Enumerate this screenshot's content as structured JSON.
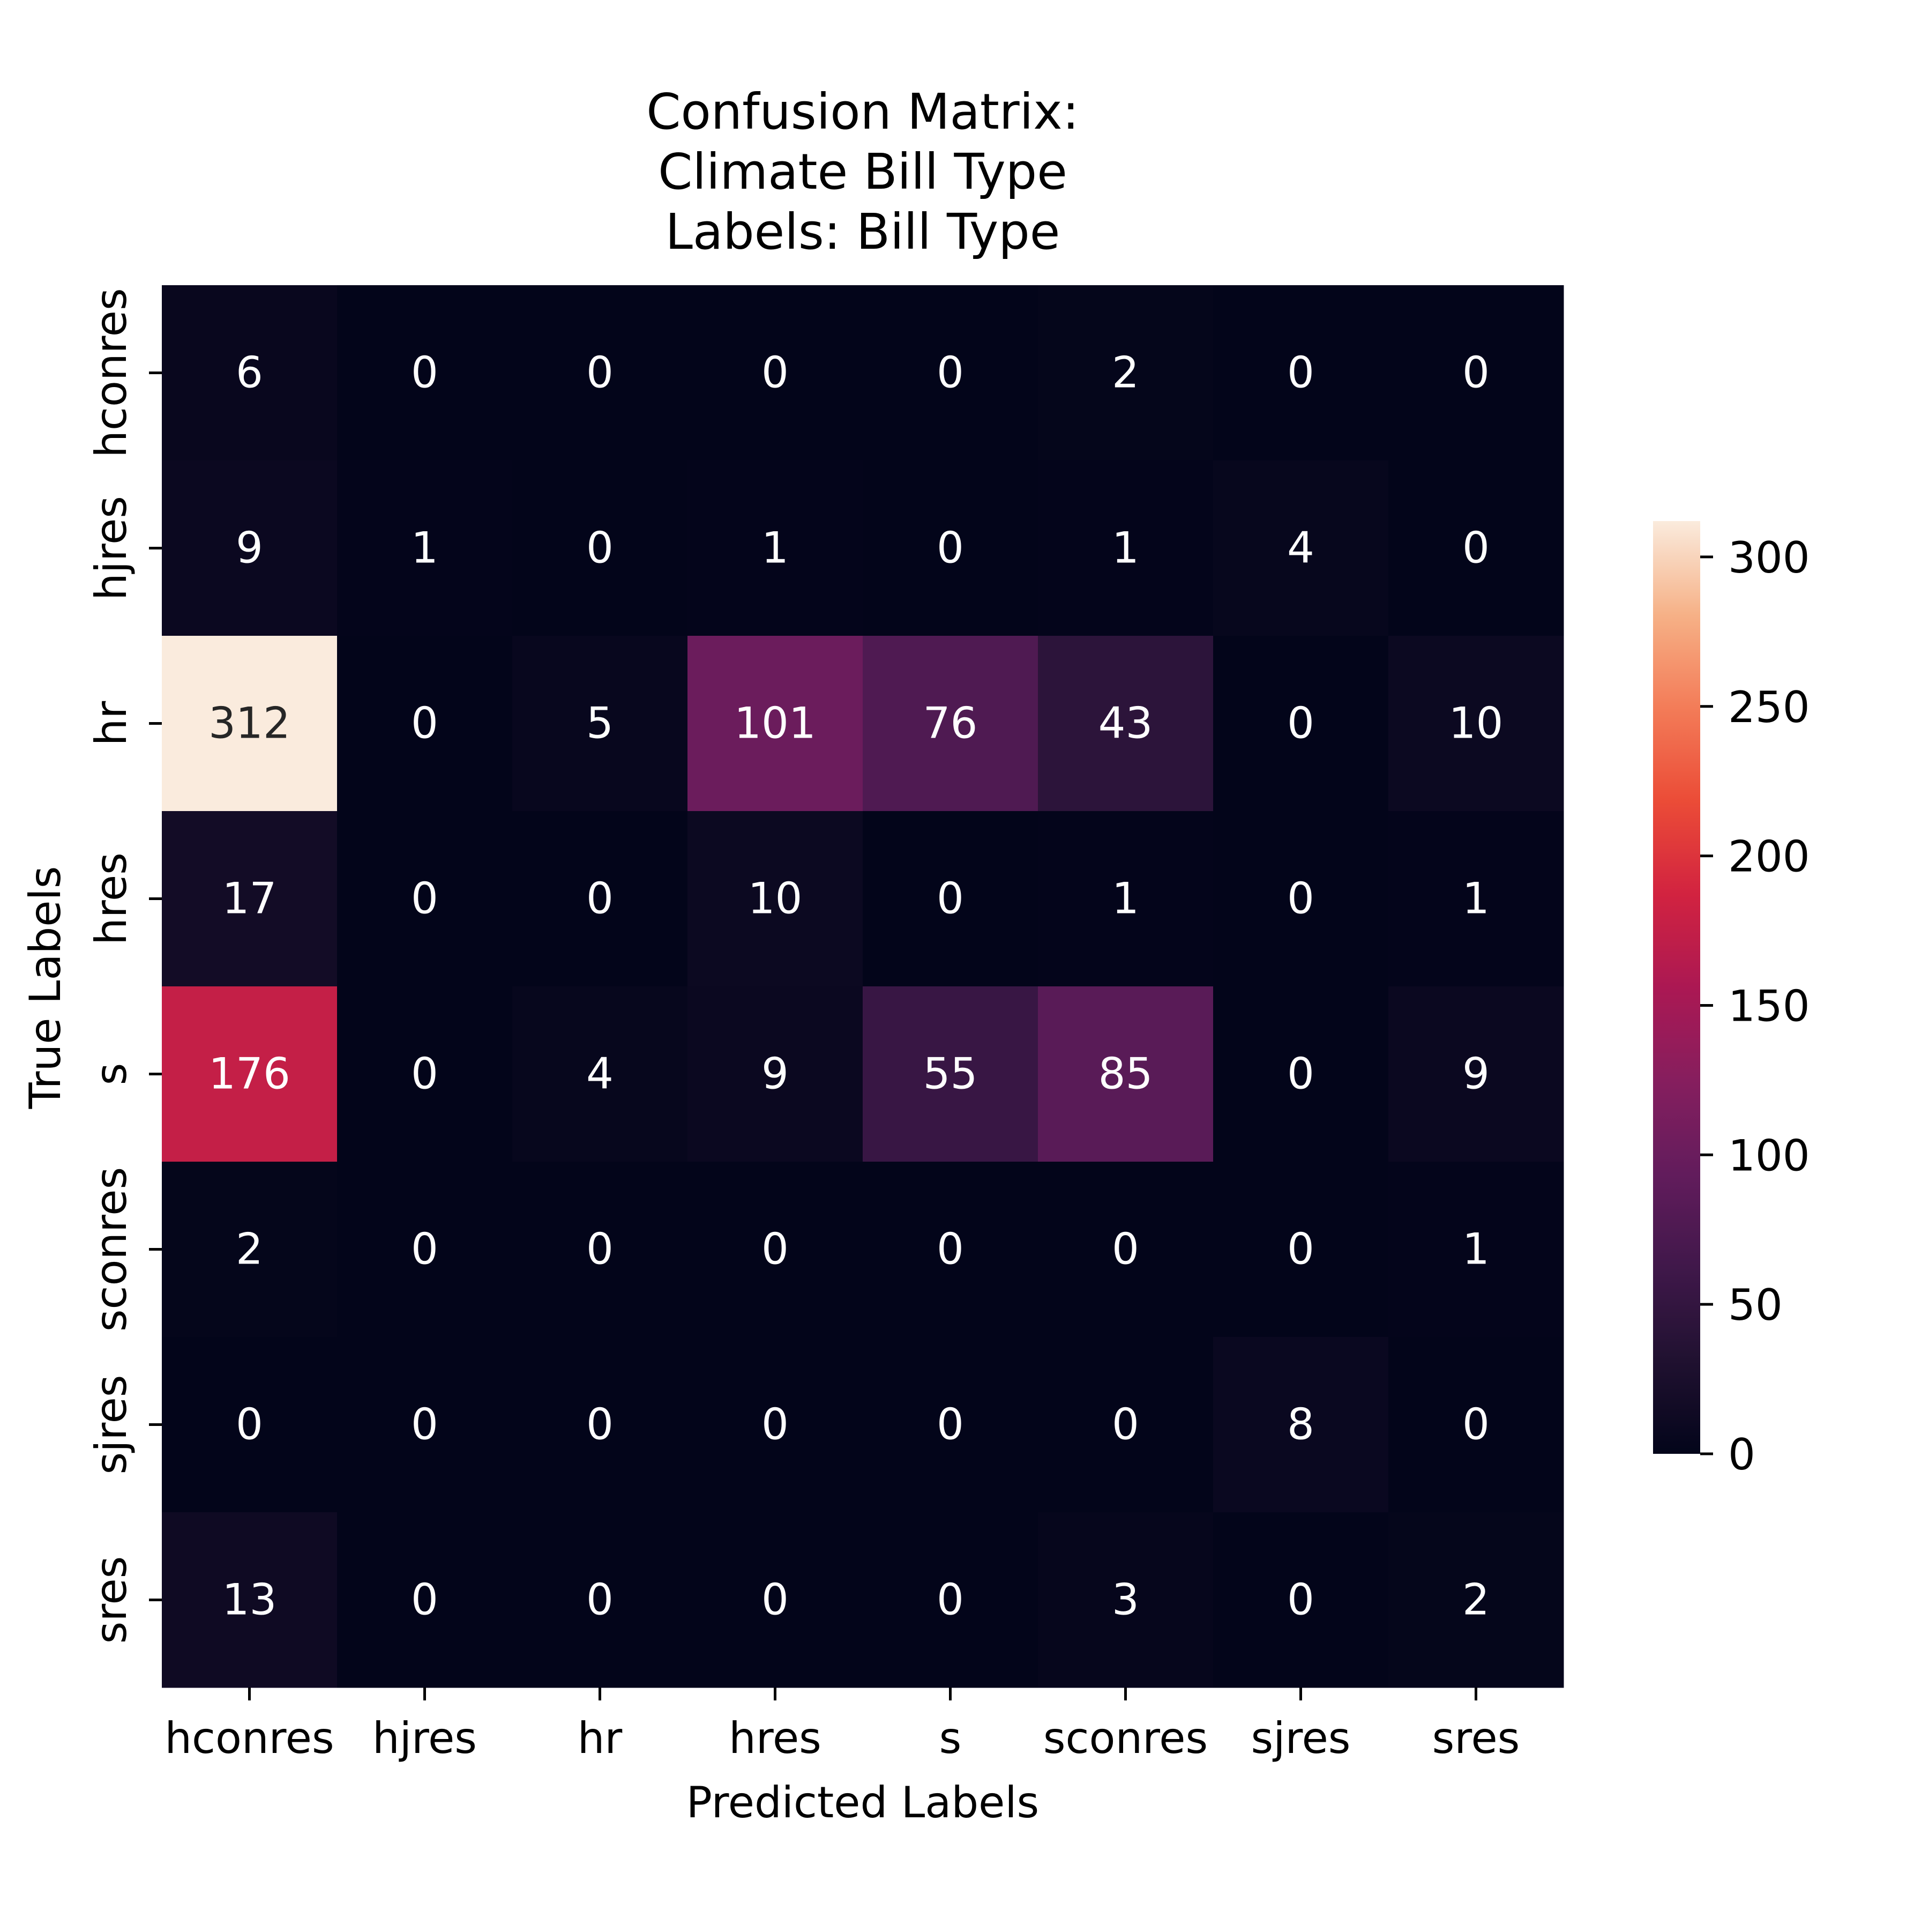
{
  "chart_data": {
    "type": "heatmap",
    "title": [
      "Confusion Matrix:",
      "Climate Bill Type",
      "Labels: Bill Type"
    ],
    "xlabel": "Predicted Labels",
    "ylabel": "True Labels",
    "x_categories": [
      "hconres",
      "hjres",
      "hr",
      "hres",
      "s",
      "sconres",
      "sjres",
      "sres"
    ],
    "y_categories": [
      "hconres",
      "hjres",
      "hr",
      "hres",
      "s",
      "sconres",
      "sjres",
      "sres"
    ],
    "matrix": [
      [
        6,
        0,
        0,
        0,
        0,
        2,
        0,
        0
      ],
      [
        9,
        1,
        0,
        1,
        0,
        1,
        4,
        0
      ],
      [
        312,
        0,
        5,
        101,
        76,
        43,
        0,
        10
      ],
      [
        17,
        0,
        0,
        10,
        0,
        1,
        0,
        1
      ],
      [
        176,
        0,
        4,
        9,
        55,
        85,
        0,
        9
      ],
      [
        2,
        0,
        0,
        0,
        0,
        0,
        0,
        1
      ],
      [
        0,
        0,
        0,
        0,
        0,
        0,
        8,
        0
      ],
      [
        13,
        0,
        0,
        0,
        0,
        3,
        0,
        2
      ]
    ],
    "colorbar": {
      "colormap": "rocket",
      "vmin": 0,
      "vmax": 312,
      "ticks": [
        "0",
        "50",
        "100",
        "150",
        "200",
        "250",
        "300"
      ]
    },
    "colors": {
      "annotation_light": "#ffffff",
      "annotation_dark": "#262626",
      "axis": "#000000"
    }
  }
}
